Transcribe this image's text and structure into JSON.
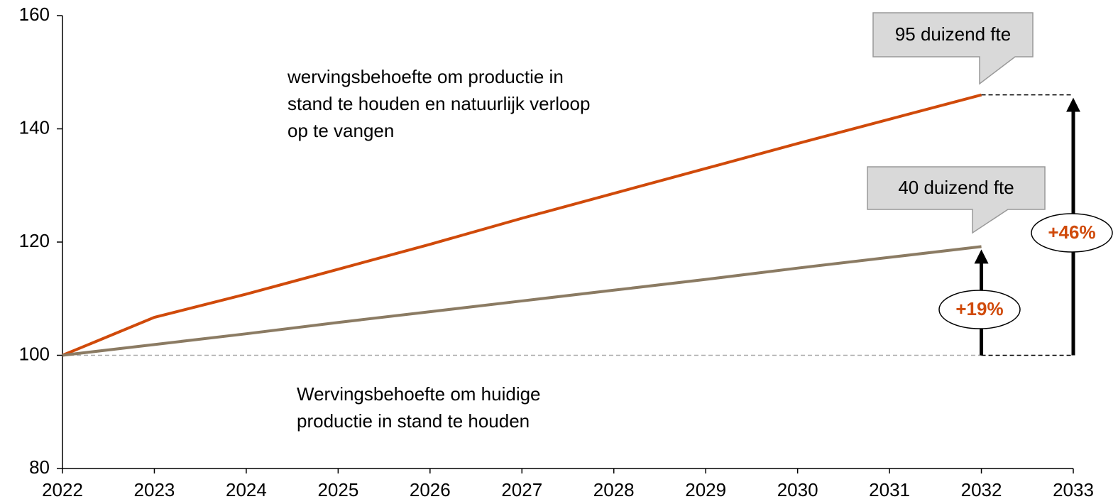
{
  "chart_data": {
    "type": "line",
    "x": [
      2022,
      2023,
      2024,
      2025,
      2026,
      2027,
      2028,
      2029,
      2030,
      2031,
      2032
    ],
    "series": [
      {
        "color": "#d04a0a",
        "values": [
          100,
          106.7,
          110.8,
          115.2,
          119.6,
          124.2,
          128.6,
          133,
          137.4,
          141.7,
          146
        ]
      },
      {
        "color": "#8b7b63",
        "values": [
          100,
          101.9,
          103.8,
          105.8,
          107.7,
          109.6,
          111.5,
          113.4,
          115.4,
          117.3,
          119.2
        ]
      }
    ],
    "xlim": [
      2022,
      2033
    ],
    "xticks": [
      2022,
      2023,
      2024,
      2025,
      2026,
      2027,
      2028,
      2029,
      2030,
      2031,
      2032,
      2033
    ],
    "ylim": [
      80,
      160
    ],
    "yticks": [
      80,
      100,
      120,
      140,
      160
    ],
    "baseline": 100,
    "annotations": [
      {
        "lines": [
          "wervingsbehoefte om productie in",
          "stand te houden en natuurlijk verloop",
          "op te vangen"
        ]
      },
      {
        "lines": [
          "Wervingsbehoefte om huidige",
          "productie in stand te houden"
        ]
      }
    ],
    "callouts": [
      "95 duizend fte",
      "40 duizend fte"
    ],
    "growth_labels": [
      "+46%",
      "+19%"
    ]
  }
}
